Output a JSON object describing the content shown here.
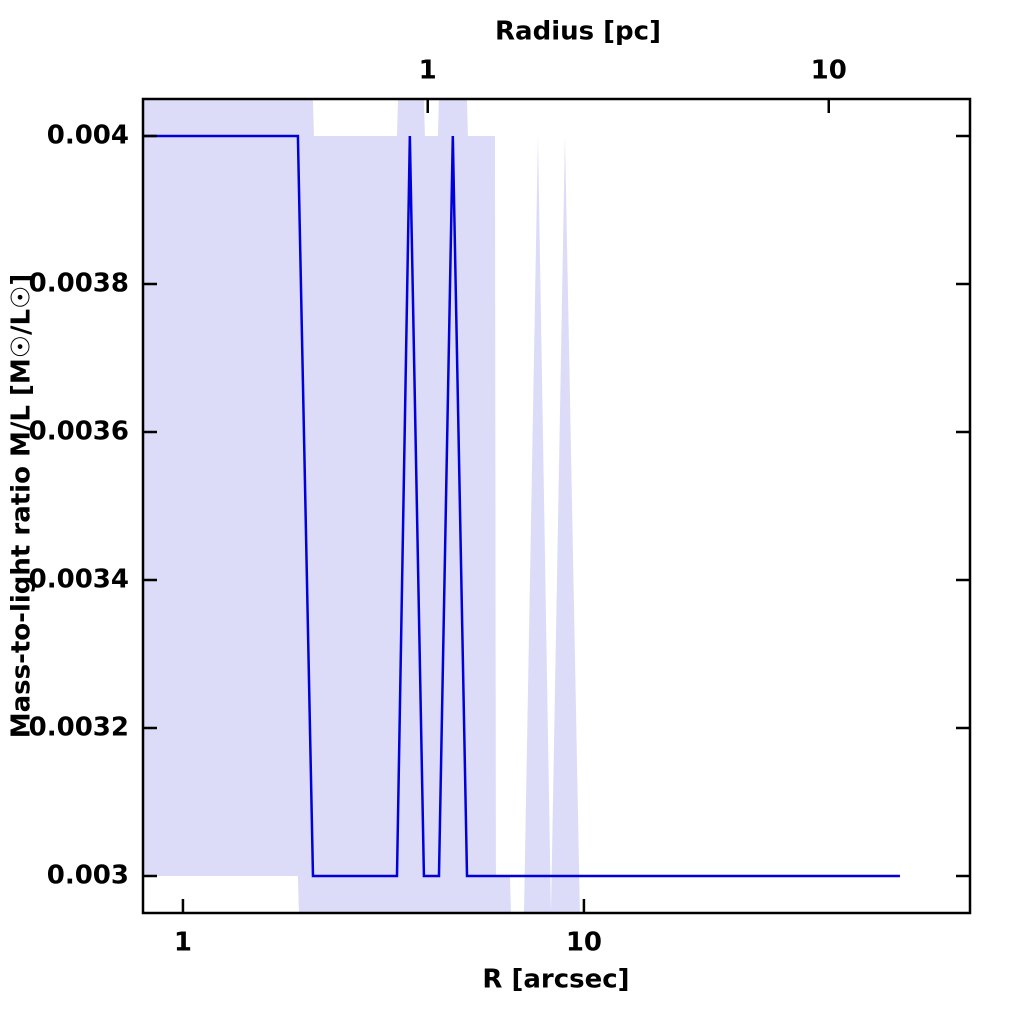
{
  "chart_data": {
    "type": "line",
    "title": "Radius [pc]",
    "xlabel": "R [arcsec]",
    "ylabel": "Mass-to-light ratio M/L [M☉/L☉]",
    "xscale": "log",
    "xlim": [
      0.795,
      91.8
    ],
    "xticks": [
      1,
      10
    ],
    "x2lim": [
      0.195,
      22.5
    ],
    "x2ticks": [
      1,
      10
    ],
    "ylim": [
      0.00295,
      0.00405
    ],
    "yticks": [
      0.003,
      0.0032,
      0.0034,
      0.0036,
      0.0038,
      0.004
    ],
    "line": {
      "color": "#0000dd",
      "x": [
        0.795,
        1.935,
        2.11,
        3.418,
        3.68,
        3.99,
        4.35,
        4.71,
        5.11,
        61.4
      ],
      "values": [
        0.004,
        0.004,
        0.003,
        0.003,
        0.004,
        0.003,
        0.003,
        0.004,
        0.003,
        0.003
      ]
    },
    "band": {
      "color": "#dcdcf8",
      "x": [
        0.795,
        1.935,
        1.946,
        2.11,
        2.122,
        3.418,
        3.438,
        3.99,
        4.013,
        4.324,
        4.349,
        5.108,
        5.137,
        6.0,
        6.033,
        6.539,
        6.577,
        7.087,
        7.68,
        8.275,
        8.967,
        9.772
      ],
      "upper": [
        0.00405,
        0.00405,
        0.00405,
        0.00405,
        0.004,
        0.004,
        0.00405,
        0.00405,
        0.004,
        0.004,
        0.00405,
        0.00405,
        0.004,
        0.004,
        0.003,
        0.003,
        0.00295,
        0.00295,
        0.004,
        0.00295,
        0.004,
        0.00295
      ],
      "lower": [
        0.003,
        0.003,
        0.00295,
        0.00295,
        0.00295,
        0.00295,
        0.00295,
        0.00295,
        0.00295,
        0.00295,
        0.00295,
        0.00295,
        0.00295,
        0.00295,
        0.00295,
        0.00295,
        0.00295,
        0.00295,
        0.00295,
        0.00295,
        0.00295,
        0.00295
      ]
    }
  }
}
